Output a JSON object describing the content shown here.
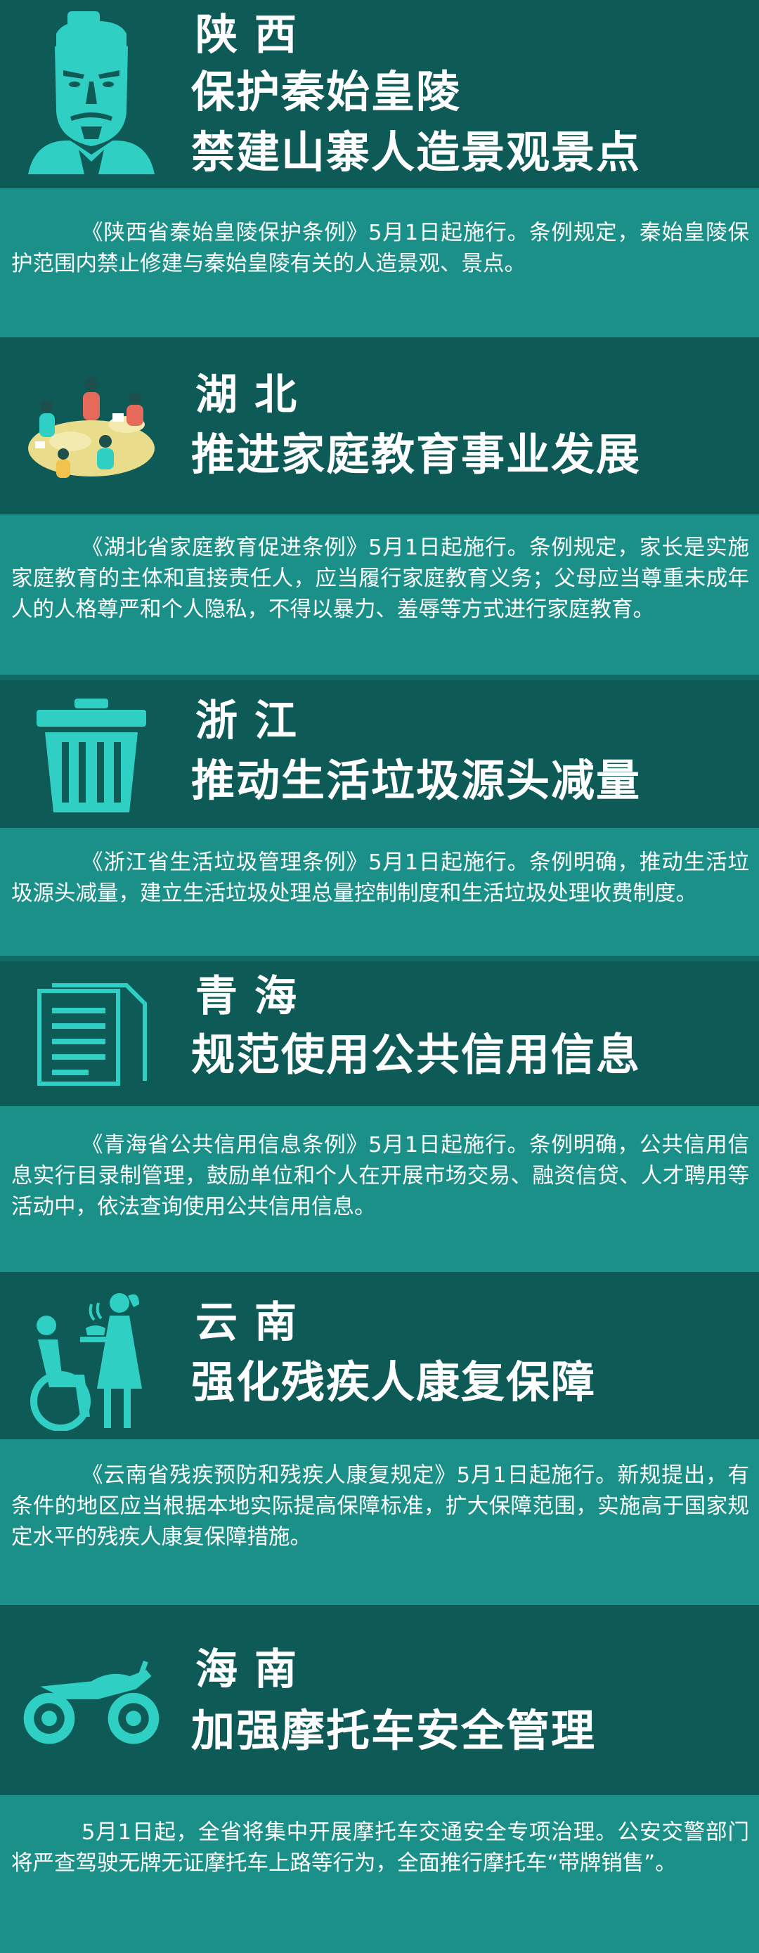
{
  "sections": [
    {
      "province": "陕西",
      "title_lines": [
        "保护秦始皇陵",
        "禁建山寨人造景观景点"
      ],
      "icon": "terracotta-warrior-icon",
      "text": "《陕西省秦始皇陵保护条例》5月1日起施行。条例规定，秦始皇陵保护范围内禁止修建与秦始皇陵有关的人造景观、景点。"
    },
    {
      "province": "湖北",
      "title_lines": [
        "推进家庭教育事业发展"
      ],
      "icon": "family-reading-icon",
      "text": "《湖北省家庭教育促进条例》5月1日起施行。条例规定，家长是实施家庭教育的主体和直接责任人，应当履行家庭教育义务；父母应当尊重未成年人的人格尊严和个人隐私，不得以暴力、羞辱等方式进行家庭教育。"
    },
    {
      "province": "浙江",
      "title_lines": [
        "推动生活垃圾源头减量"
      ],
      "icon": "trash-bin-icon",
      "text": "《浙江省生活垃圾管理条例》5月1日起施行。条例明确，推动生活垃圾源头减量，建立生活垃圾处理总量控制制度和生活垃圾处理收费制度。"
    },
    {
      "province": "青海",
      "title_lines": [
        "规范使用公共信用信息"
      ],
      "icon": "document-icon",
      "text": "《青海省公共信用信息条例》5月1日起施行。条例明确，公共信用信息实行目录制管理，鼓励单位和个人在开展市场交易、融资信贷、人才聘用等活动中，依法查询使用公共信用信息。"
    },
    {
      "province": "云南",
      "title_lines": [
        "强化残疾人康复保障"
      ],
      "icon": "wheelchair-caregiver-icon",
      "text": "《云南省残疾预防和残疾人康复规定》5月1日起施行。新规提出，有条件的地区应当根据本地实际提高保障标准，扩大保障范围，实施高于国家规定水平的残疾人康复保障措施。"
    },
    {
      "province": "海南",
      "title_lines": [
        "加强摩托车安全管理"
      ],
      "icon": "motorcycle-icon",
      "text": "5月1日起，全省将集中开展摩托车交通安全专项治理。公安交警部门将严查驾驶无牌无证摩托车上路等行为，全面推行摩托车“带牌销售”。"
    }
  ],
  "colors": {
    "header_bg": "#0e5a57",
    "body_bg": "#1a9088",
    "icon_color": "#2fd0c3",
    "text": "#ffffff"
  }
}
